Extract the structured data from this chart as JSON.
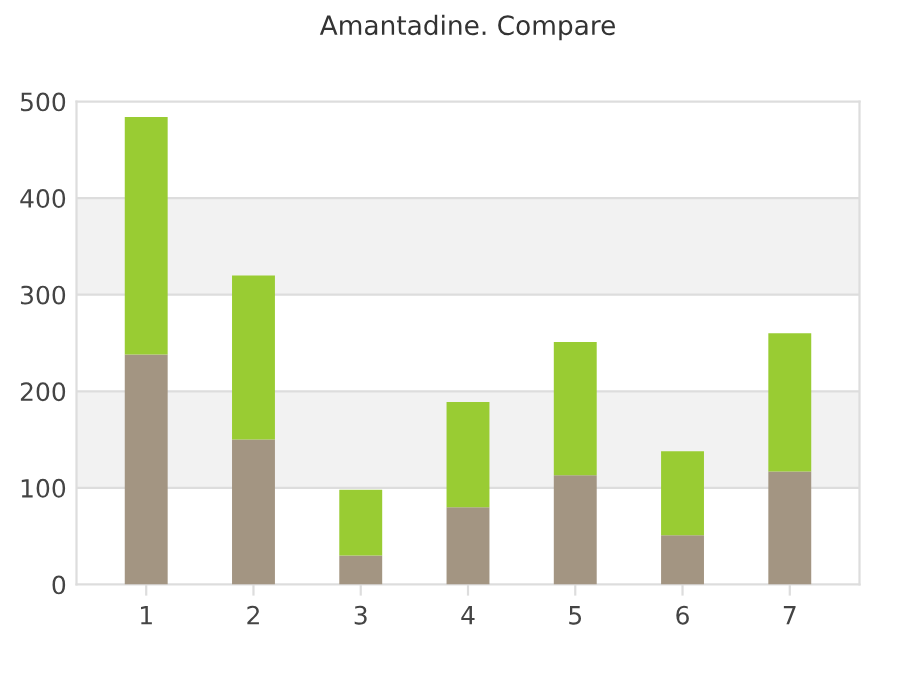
{
  "chart_data": {
    "type": "bar",
    "title": "Amantadine. Compare",
    "stacked": true,
    "categories": [
      "1",
      "2",
      "3",
      "4",
      "5",
      "6",
      "7"
    ],
    "series": [
      {
        "color": "#a39582",
        "values": [
          238,
          150,
          30,
          80,
          113,
          51,
          117
        ]
      },
      {
        "color": "#99cc33",
        "values": [
          246,
          170,
          68,
          109,
          138,
          87,
          143
        ]
      }
    ],
    "ylim": [
      0,
      500
    ],
    "yticks": [
      0,
      100,
      200,
      300,
      400,
      500
    ],
    "grid": "y",
    "bands": [
      {
        "axis": "y",
        "from": 100,
        "to": 200,
        "color": "#f2f2f2"
      },
      {
        "axis": "y",
        "from": 300,
        "to": 400,
        "color": "#f2f2f2"
      }
    ],
    "legend": false
  }
}
